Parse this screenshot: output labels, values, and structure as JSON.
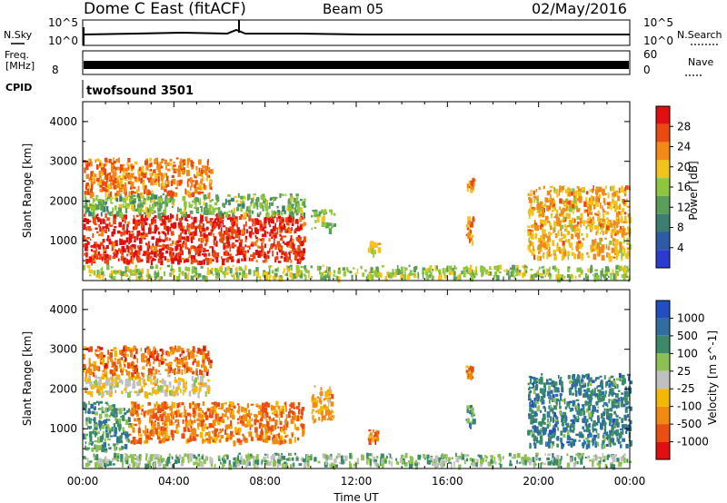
{
  "header": {
    "title": "Dome C East (fitACF)",
    "beam": "Beam 05",
    "date": "02/May/2016"
  },
  "top_panels": {
    "nsky_label": "N.Sky",
    "nsky_ticks": [
      "10^5",
      "10^0"
    ],
    "nsearch_label": "N.Search",
    "nsearch_ticks": [
      "10^5",
      "10^0"
    ],
    "freq_label": "Freq.",
    "freq_unit": "[MHz]",
    "freq_tick": "8",
    "nave_label": "Nave",
    "nave_ticks": [
      "60",
      "0"
    ],
    "cpid_label": "CPID",
    "cpid_value": "twofsound 3501"
  },
  "colors": {
    "power": [
      "#2b3bd0",
      "#2e5aa8",
      "#3a7f70",
      "#5a9e5a",
      "#8fc640",
      "#f2c31a",
      "#f28a1a",
      "#ea4a10",
      "#e01010"
    ],
    "velocity": [
      "#1f4fc0",
      "#2e6fa0",
      "#3a8a6a",
      "#8cc050",
      "#c0c0c0",
      "#f5b800",
      "#f08a10",
      "#ea4e10",
      "#e01010"
    ]
  },
  "chart_data": [
    {
      "type": "heatmap",
      "name": "power-panel",
      "xlabel": "",
      "ylabel": "Slant Range [km]",
      "xlim": [
        0,
        24
      ],
      "ylim": [
        0,
        4500
      ],
      "y_ticks": [
        "1000",
        "2000",
        "3000",
        "4000"
      ],
      "colorbar_label": "Power [dB]",
      "colorbar_ticks": [
        "4",
        "8",
        "12",
        "16",
        "20",
        "24",
        "28"
      ],
      "colorbar_range": [
        0,
        32
      ],
      "regions": [
        {
          "x": [
            0.0,
            9.7
          ],
          "y": [
            500,
            1700
          ],
          "level": 7.5
        },
        {
          "x": [
            0.0,
            9.7
          ],
          "y": [
            1700,
            2200
          ],
          "level": 3.5
        },
        {
          "x": [
            0.0,
            5.6
          ],
          "y": [
            2200,
            3100
          ],
          "level": 6.2
        },
        {
          "x": [
            10.0,
            11.0
          ],
          "y": [
            1300,
            1800
          ],
          "level": 3.5
        },
        {
          "x": [
            12.5,
            13.0
          ],
          "y": [
            700,
            1000
          ],
          "level": 5
        },
        {
          "x": [
            16.8,
            17.1
          ],
          "y": [
            1000,
            1700
          ],
          "level": 6
        },
        {
          "x": [
            16.8,
            17.1
          ],
          "y": [
            2300,
            2600
          ],
          "level": 6
        },
        {
          "x": [
            19.5,
            24.0
          ],
          "y": [
            600,
            2400
          ],
          "level": 5.5
        },
        {
          "x": [
            0.0,
            24.0
          ],
          "y": [
            100,
            400
          ],
          "level": 4
        }
      ]
    },
    {
      "type": "heatmap",
      "name": "velocity-panel",
      "xlabel": "Time UT",
      "ylabel": "Slant Range [km]",
      "xlim": [
        0,
        24
      ],
      "ylim": [
        0,
        4500
      ],
      "x_ticks": [
        "00:00",
        "04:00",
        "08:00",
        "12:00",
        "16:00",
        "20:00",
        "00:00"
      ],
      "y_ticks": [
        "1000",
        "2000",
        "3000",
        "4000"
      ],
      "colorbar_label": "Velocity [m s^-1]",
      "colorbar_ticks": [
        "1000",
        "500",
        "100",
        "25",
        "-25",
        "-100",
        "-500",
        "-1000"
      ],
      "regions": [
        {
          "x": [
            0.0,
            2.0
          ],
          "y": [
            500,
            1700
          ],
          "level": 2
        },
        {
          "x": [
            2.0,
            9.7
          ],
          "y": [
            700,
            1700
          ],
          "level": 6.3
        },
        {
          "x": [
            0.0,
            5.6
          ],
          "y": [
            1900,
            2400
          ],
          "level": 4.5
        },
        {
          "x": [
            0.0,
            5.6
          ],
          "y": [
            2400,
            3100
          ],
          "level": 6.5
        },
        {
          "x": [
            10.0,
            11.0
          ],
          "y": [
            1200,
            2100
          ],
          "level": 5.5
        },
        {
          "x": [
            12.5,
            13.0
          ],
          "y": [
            700,
            1000
          ],
          "level": 6.5
        },
        {
          "x": [
            16.8,
            17.1
          ],
          "y": [
            1100,
            1600
          ],
          "level": 2
        },
        {
          "x": [
            16.8,
            17.1
          ],
          "y": [
            2300,
            2600
          ],
          "level": 6
        },
        {
          "x": [
            19.5,
            24.0
          ],
          "y": [
            600,
            2400
          ],
          "level": 1.5
        },
        {
          "x": [
            0.0,
            24.0
          ],
          "y": [
            100,
            400
          ],
          "level": 3
        }
      ]
    }
  ]
}
